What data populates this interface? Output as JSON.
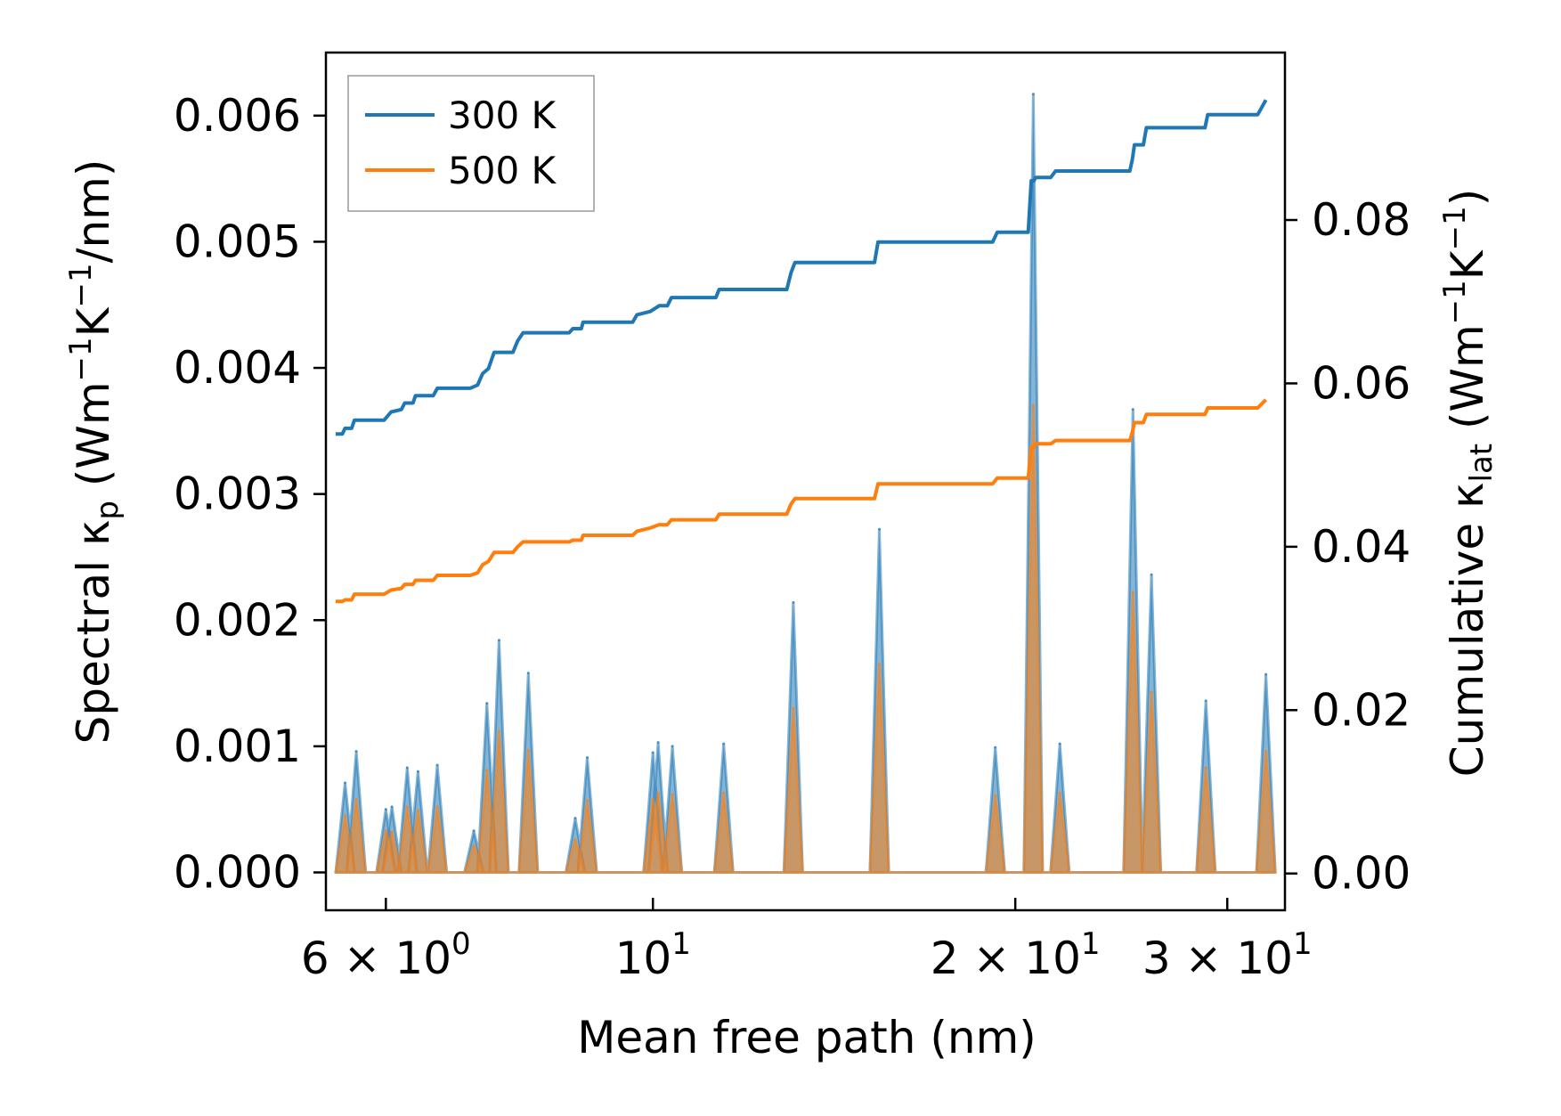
{
  "chart_data": {
    "type": "line",
    "xscale": "log",
    "xlabel": "Mean free path (nm)",
    "ylabel_left": {
      "main": "Spectral κ",
      "sub": "p",
      "unit_prefix": " (Wm",
      "sup1": "−1",
      "unit_mid": "K",
      "sup2": "−1",
      "unit_suffix": "/nm)"
    },
    "ylabel_right": {
      "main": "Cumulative κ",
      "sub": "lat",
      "unit_prefix": " (Wm",
      "sup1": "−1",
      "unit_mid": "K",
      "sup2": "−1",
      "unit_suffix": ")"
    },
    "xlim": [
      5.35,
      33.5
    ],
    "ylim_left": [
      -0.0003,
      0.0065
    ],
    "ylim_right": [
      -0.0045,
      0.1005
    ],
    "x_ticks": [
      {
        "value": 6,
        "mantissa": "6",
        "exponent": "0"
      },
      {
        "value": 10,
        "mantissa": "",
        "exponent": "1"
      },
      {
        "value": 20,
        "mantissa": "2",
        "exponent": "1"
      },
      {
        "value": 30,
        "mantissa": "3",
        "exponent": "1"
      }
    ],
    "y_left_ticks": [
      0.0,
      0.001,
      0.002,
      0.003,
      0.004,
      0.005,
      0.006
    ],
    "y_left_tick_labels": [
      "0.000",
      "0.001",
      "0.002",
      "0.003",
      "0.004",
      "0.005",
      "0.006"
    ],
    "y_right_ticks": [
      0.0,
      0.02,
      0.04,
      0.06,
      0.08
    ],
    "y_right_tick_labels": [
      "0.00",
      "0.02",
      "0.04",
      "0.06",
      "0.08"
    ],
    "legend": {
      "position": "upper-left",
      "entries": [
        "300 K",
        "500 K"
      ]
    },
    "colors": {
      "300 K": "#1f77b4",
      "500 K": "#ff7f0e"
    },
    "series": [
      {
        "name": "300 K",
        "axis": "right",
        "kind": "cumulative",
        "points": [
          [
            5.45,
            0.0538
          ],
          [
            5.52,
            0.0538
          ],
          [
            5.55,
            0.0545
          ],
          [
            5.62,
            0.0545
          ],
          [
            5.65,
            0.0555
          ],
          [
            5.98,
            0.0555
          ],
          [
            6.06,
            0.0565
          ],
          [
            6.18,
            0.0568
          ],
          [
            6.22,
            0.0576
          ],
          [
            6.32,
            0.0576
          ],
          [
            6.35,
            0.0585
          ],
          [
            6.57,
            0.0585
          ],
          [
            6.62,
            0.0594
          ],
          [
            7.05,
            0.0594
          ],
          [
            7.15,
            0.0598
          ],
          [
            7.22,
            0.0612
          ],
          [
            7.3,
            0.0618
          ],
          [
            7.38,
            0.0638
          ],
          [
            7.65,
            0.0638
          ],
          [
            7.72,
            0.0652
          ],
          [
            7.8,
            0.0662
          ],
          [
            8.52,
            0.0662
          ],
          [
            8.58,
            0.0667
          ],
          [
            8.72,
            0.0667
          ],
          [
            8.75,
            0.0675
          ],
          [
            9.62,
            0.0675
          ],
          [
            9.7,
            0.0684
          ],
          [
            9.95,
            0.0688
          ],
          [
            10.12,
            0.0695
          ],
          [
            10.28,
            0.0695
          ],
          [
            10.36,
            0.0705
          ],
          [
            11.28,
            0.0705
          ],
          [
            11.35,
            0.0715
          ],
          [
            12.92,
            0.0715
          ],
          [
            13.02,
            0.0735
          ],
          [
            13.12,
            0.0748
          ],
          [
            15.28,
            0.0748
          ],
          [
            15.38,
            0.0773
          ],
          [
            19.15,
            0.0773
          ],
          [
            19.32,
            0.0785
          ],
          [
            20.5,
            0.0785
          ],
          [
            20.62,
            0.0848
          ],
          [
            20.72,
            0.0848
          ],
          [
            20.8,
            0.0852
          ],
          [
            21.4,
            0.0852
          ],
          [
            21.6,
            0.086
          ],
          [
            24.9,
            0.086
          ],
          [
            25.02,
            0.0874
          ],
          [
            25.12,
            0.0892
          ],
          [
            25.55,
            0.0892
          ],
          [
            25.7,
            0.0913
          ],
          [
            28.75,
            0.0913
          ],
          [
            28.9,
            0.0929
          ],
          [
            31.8,
            0.0929
          ],
          [
            32.3,
            0.0947
          ]
        ]
      },
      {
        "name": "500 K",
        "axis": "right",
        "kind": "cumulative",
        "points": [
          [
            5.45,
            0.0333
          ],
          [
            5.52,
            0.0333
          ],
          [
            5.55,
            0.0335
          ],
          [
            5.62,
            0.0335
          ],
          [
            5.65,
            0.0342
          ],
          [
            5.98,
            0.0342
          ],
          [
            6.06,
            0.0347
          ],
          [
            6.18,
            0.0349
          ],
          [
            6.22,
            0.0354
          ],
          [
            6.32,
            0.0354
          ],
          [
            6.35,
            0.0359
          ],
          [
            6.57,
            0.0359
          ],
          [
            6.62,
            0.0365
          ],
          [
            7.05,
            0.0365
          ],
          [
            7.15,
            0.0368
          ],
          [
            7.22,
            0.0378
          ],
          [
            7.3,
            0.0382
          ],
          [
            7.38,
            0.0393
          ],
          [
            7.65,
            0.0393
          ],
          [
            7.72,
            0.04
          ],
          [
            7.8,
            0.0406
          ],
          [
            8.52,
            0.0406
          ],
          [
            8.58,
            0.0408
          ],
          [
            8.72,
            0.0408
          ],
          [
            8.75,
            0.0414
          ],
          [
            9.62,
            0.0414
          ],
          [
            9.7,
            0.0419
          ],
          [
            9.95,
            0.0423
          ],
          [
            10.12,
            0.0427
          ],
          [
            10.28,
            0.0427
          ],
          [
            10.36,
            0.0433
          ],
          [
            11.28,
            0.0433
          ],
          [
            11.35,
            0.044
          ],
          [
            12.92,
            0.044
          ],
          [
            13.02,
            0.0452
          ],
          [
            13.12,
            0.0459
          ],
          [
            15.28,
            0.0459
          ],
          [
            15.38,
            0.0477
          ],
          [
            19.15,
            0.0477
          ],
          [
            19.32,
            0.0484
          ],
          [
            20.5,
            0.0484
          ],
          [
            20.62,
            0.0522
          ],
          [
            20.72,
            0.0522
          ],
          [
            20.8,
            0.0526
          ],
          [
            21.4,
            0.0526
          ],
          [
            21.6,
            0.053
          ],
          [
            24.9,
            0.053
          ],
          [
            25.02,
            0.054
          ],
          [
            25.12,
            0.0552
          ],
          [
            25.55,
            0.0552
          ],
          [
            25.7,
            0.0562
          ],
          [
            28.75,
            0.0562
          ],
          [
            28.9,
            0.057
          ],
          [
            31.8,
            0.057
          ],
          [
            32.3,
            0.058
          ]
        ]
      },
      {
        "name": "300 K",
        "axis": "left",
        "kind": "spectral",
        "peaks": [
          [
            5.55,
            0.00071
          ],
          [
            5.67,
            0.00096
          ],
          [
            6.0,
            0.0005
          ],
          [
            6.07,
            0.00052
          ],
          [
            6.25,
            0.00083
          ],
          [
            6.38,
            0.0008
          ],
          [
            6.62,
            0.00085
          ],
          [
            7.1,
            0.00033
          ],
          [
            7.28,
            0.00134
          ],
          [
            7.45,
            0.00184
          ],
          [
            7.88,
            0.00158
          ],
          [
            8.62,
            0.00043
          ],
          [
            8.82,
            0.00091
          ],
          [
            10.0,
            0.00095
          ],
          [
            10.1,
            0.00103
          ],
          [
            10.38,
            0.001
          ],
          [
            11.45,
            0.00102
          ],
          [
            13.08,
            0.00214
          ],
          [
            15.42,
            0.00272
          ],
          [
            19.25,
            0.00099
          ],
          [
            20.7,
            0.00617
          ],
          [
            21.78,
            0.00102
          ],
          [
            25.05,
            0.00367
          ],
          [
            25.95,
            0.00236
          ],
          [
            28.8,
            0.00136
          ],
          [
            32.3,
            0.00157
          ]
        ]
      },
      {
        "name": "500 K",
        "axis": "left",
        "kind": "spectral",
        "peaks": [
          [
            5.55,
            0.00045
          ],
          [
            5.67,
            0.00058
          ],
          [
            6.0,
            0.00033
          ],
          [
            6.07,
            0.00032
          ],
          [
            6.25,
            0.00052
          ],
          [
            6.38,
            0.00049
          ],
          [
            6.62,
            0.00052
          ],
          [
            7.1,
            0.00021
          ],
          [
            7.28,
            0.00081
          ],
          [
            7.45,
            0.00112
          ],
          [
            7.88,
            0.00097
          ],
          [
            8.62,
            0.00026
          ],
          [
            8.82,
            0.00057
          ],
          [
            10.0,
            0.00058
          ],
          [
            10.1,
            0.00063
          ],
          [
            10.38,
            0.00062
          ],
          [
            11.45,
            0.00063
          ],
          [
            13.08,
            0.0013
          ],
          [
            15.42,
            0.00165
          ],
          [
            19.25,
            0.00061
          ],
          [
            20.7,
            0.0037
          ],
          [
            21.78,
            0.00063
          ],
          [
            25.05,
            0.00222
          ],
          [
            25.95,
            0.00143
          ],
          [
            28.8,
            0.00083
          ],
          [
            32.3,
            0.00096
          ]
        ]
      }
    ]
  }
}
